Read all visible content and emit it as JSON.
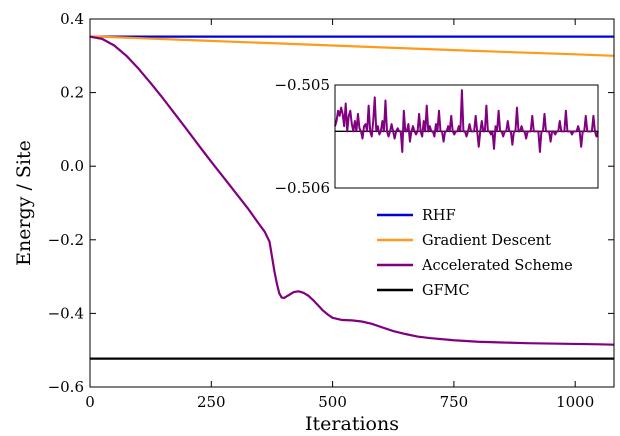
{
  "chart_data": {
    "type": "line",
    "xlabel": "Iterations",
    "ylabel": "Energy / Site",
    "xlim": [
      0,
      1080
    ],
    "ylim": [
      -0.6,
      0.4
    ],
    "xticks": [
      0,
      250,
      500,
      750,
      1000
    ],
    "xtick_labels": [
      "0",
      "250",
      "500",
      "750",
      "1000"
    ],
    "yticks": [
      -0.6,
      -0.4,
      -0.2,
      0.0,
      0.2,
      0.4
    ],
    "ytick_labels": [
      "−0.6",
      "−0.4",
      "−0.2",
      "0.0",
      "0.2",
      "0.4"
    ],
    "legend_position": "right, below inset",
    "series": [
      {
        "name": "RHF",
        "color": "#0000dd",
        "x": [
          0,
          1080
        ],
        "y": [
          0.352,
          0.352
        ]
      },
      {
        "name": "Gradient Descent",
        "color": "#ff9a1a",
        "x": [
          0,
          200,
          400,
          600,
          800,
          1000,
          1080
        ],
        "y": [
          0.353,
          0.343,
          0.333,
          0.323,
          0.313,
          0.304,
          0.3
        ]
      },
      {
        "name": "Accelerated Scheme",
        "color": "#800080",
        "x": [
          0,
          25,
          50,
          75,
          100,
          125,
          150,
          175,
          200,
          225,
          250,
          275,
          300,
          325,
          350,
          360,
          370,
          375,
          380,
          385,
          390,
          395,
          400,
          410,
          420,
          430,
          440,
          450,
          460,
          470,
          480,
          490,
          500,
          520,
          540,
          560,
          580,
          600,
          625,
          650,
          675,
          700,
          750,
          800,
          850,
          900,
          950,
          1000,
          1050,
          1080
        ],
        "y": [
          0.352,
          0.346,
          0.328,
          0.3,
          0.265,
          0.226,
          0.185,
          0.142,
          0.099,
          0.055,
          0.012,
          -0.03,
          -0.072,
          -0.114,
          -0.16,
          -0.178,
          -0.205,
          -0.245,
          -0.285,
          -0.318,
          -0.345,
          -0.357,
          -0.358,
          -0.35,
          -0.342,
          -0.34,
          -0.344,
          -0.352,
          -0.364,
          -0.378,
          -0.392,
          -0.403,
          -0.412,
          -0.418,
          -0.419,
          -0.422,
          -0.428,
          -0.437,
          -0.448,
          -0.456,
          -0.463,
          -0.467,
          -0.473,
          -0.477,
          -0.479,
          -0.481,
          -0.482,
          -0.483,
          -0.484,
          -0.485
        ]
      },
      {
        "name": "GFMC",
        "color": "#000000",
        "x": [
          0,
          1080
        ],
        "y": [
          -0.523,
          -0.523
        ]
      }
    ],
    "inset": {
      "type": "line",
      "ylim": [
        -0.506,
        -0.505
      ],
      "ytick_labels": [
        "−0.505",
        "−0.506"
      ],
      "baseline": -0.50545,
      "series": [
        {
          "name": "Accelerated Scheme",
          "color": "#800080",
          "y": [
            -0.5054,
            -0.50535,
            -0.50525,
            -0.5053,
            -0.50522,
            -0.50528,
            -0.5054,
            -0.50518,
            -0.50545,
            -0.5053,
            -0.50525,
            -0.50538,
            -0.50545,
            -0.50535,
            -0.50545,
            -0.50528,
            -0.50542,
            -0.50545,
            -0.50552,
            -0.5054,
            -0.50538,
            -0.50545,
            -0.5052,
            -0.50545,
            -0.5055,
            -0.50535,
            -0.50512,
            -0.50545,
            -0.5054,
            -0.50548,
            -0.50545,
            -0.50535,
            -0.50545,
            -0.50515,
            -0.50545,
            -0.5055,
            -0.50545,
            -0.50538,
            -0.50545,
            -0.50552,
            -0.50545,
            -0.50542,
            -0.50545,
            -0.50545,
            -0.50565,
            -0.50525,
            -0.50545,
            -0.50545,
            -0.50538,
            -0.50555,
            -0.50545,
            -0.5054,
            -0.50545,
            -0.50548,
            -0.50545,
            -0.50528,
            -0.50545,
            -0.5055,
            -0.50535,
            -0.50545,
            -0.5052,
            -0.50545,
            -0.5054,
            -0.50545,
            -0.50545,
            -0.5055,
            -0.50538,
            -0.50545,
            -0.50525,
            -0.50545,
            -0.50545,
            -0.50555,
            -0.50545,
            -0.50545,
            -0.5054,
            -0.50545,
            -0.5053,
            -0.50545,
            -0.50548,
            -0.50545,
            -0.50545,
            -0.5054,
            -0.50545,
            -0.50505,
            -0.50545,
            -0.50545,
            -0.5055,
            -0.50545,
            -0.50538,
            -0.50545,
            -0.50545,
            -0.50545,
            -0.5053,
            -0.50545,
            -0.5056,
            -0.50545,
            -0.50535,
            -0.50545,
            -0.50545,
            -0.5052,
            -0.50545,
            -0.50545,
            -0.50548,
            -0.50545,
            -0.50562,
            -0.5054,
            -0.50545,
            -0.50525,
            -0.50545,
            -0.50545,
            -0.5055,
            -0.50545,
            -0.50545,
            -0.50535,
            -0.50545,
            -0.50545,
            -0.50558,
            -0.50545,
            -0.50545,
            -0.50522,
            -0.50545,
            -0.50545,
            -0.5054,
            -0.50545,
            -0.50545,
            -0.50552,
            -0.50545,
            -0.50545,
            -0.50545,
            -0.5053,
            -0.50545,
            -0.50545,
            -0.50545,
            -0.50545,
            -0.50565,
            -0.50545,
            -0.50545,
            -0.50528,
            -0.50545,
            -0.50545,
            -0.50545,
            -0.50555,
            -0.50545,
            -0.50545,
            -0.50548,
            -0.50545,
            -0.50545,
            -0.50535,
            -0.50545,
            -0.50545,
            -0.50545,
            -0.50525,
            -0.50545,
            -0.50545,
            -0.50545,
            -0.50548,
            -0.50545,
            -0.50545,
            -0.50545,
            -0.5054,
            -0.50545,
            -0.5056,
            -0.50545,
            -0.50545,
            -0.5053,
            -0.50545,
            -0.50545,
            -0.50545,
            -0.50545,
            -0.5053,
            -0.50545,
            -0.5055,
            -0.50545
          ]
        },
        {
          "name": "GFMC",
          "color": "#000000",
          "y": [
            -0.50545,
            -0.50545
          ]
        }
      ]
    }
  }
}
